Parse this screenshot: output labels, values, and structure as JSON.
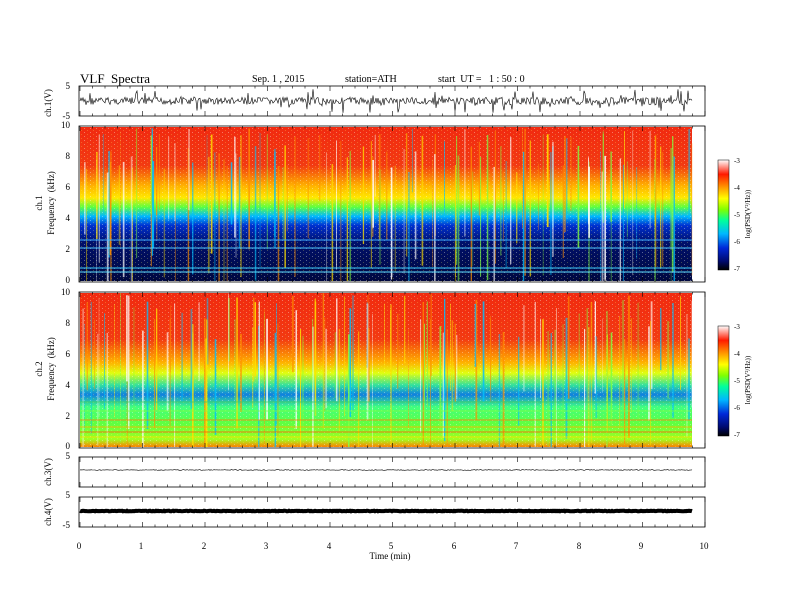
{
  "header": {
    "title": "VLF  Spectra",
    "date": "Sep. 1 , 2015",
    "station": "station=ATH",
    "start": "start  UT =   1 : 50 : 0"
  },
  "panels": {
    "ch1_wave": {
      "ylabel": "ch.1(V)",
      "ticks": [
        "5",
        "-5"
      ]
    },
    "ch1_spec": {
      "ylabel_top": "ch.1",
      "ylabel": "Frequency  (kHz)",
      "ticks": [
        "10",
        "8",
        "6",
        "4",
        "2",
        "0"
      ]
    },
    "ch2_spec": {
      "ylabel_top": "ch.2",
      "ylabel": "Frequency  (kHz)",
      "ticks": [
        "10",
        "8",
        "6",
        "4",
        "2",
        "0"
      ]
    },
    "ch3_wave": {
      "ylabel": "ch.3(V)",
      "ticks": [
        "5"
      ]
    },
    "ch4_wave": {
      "ylabel": "ch.4(V)",
      "ticks": [
        "5",
        "-5"
      ]
    }
  },
  "colorbar": {
    "label": "log(PSD(V²/Hz))",
    "ticks": [
      "-3",
      "-4",
      "-5",
      "-6",
      "-7"
    ]
  },
  "chart_data": [
    {
      "type": "line",
      "panel": "ch.1 waveform",
      "ylabel": "ch.1(V)",
      "ylim": [
        -5,
        5
      ],
      "xlim": [
        0,
        10
      ],
      "x_unit": "min",
      "description_values": {
        "baseline": 0,
        "noise_amplitude_V": 1.5,
        "data_end_min": 9.8
      }
    },
    {
      "type": "heatmap",
      "panel": "ch.1 spectrogram",
      "ylabel": "Frequency  (kHz)",
      "ylim": [
        0,
        10
      ],
      "xlim": [
        0,
        10
      ],
      "clim": [
        -7,
        -3
      ],
      "frequency_kHz": [
        10,
        9,
        8,
        7,
        6,
        5,
        4,
        3,
        2,
        1,
        0
      ],
      "mean_logPSD": [
        -3.6,
        -3.7,
        -3.8,
        -4.0,
        -4.3,
        -5.2,
        -6.3,
        -6.6,
        -6.6,
        -6.6,
        -6.8
      ]
    },
    {
      "type": "heatmap",
      "panel": "ch.2 spectrogram",
      "ylabel": "Frequency  (kHz)",
      "ylim": [
        0,
        10
      ],
      "xlim": [
        0,
        10
      ],
      "clim": [
        -7,
        -3
      ],
      "frequency_kHz": [
        10,
        9,
        8,
        7,
        6,
        5,
        4,
        3,
        2,
        1,
        0
      ],
      "mean_logPSD": [
        -3.6,
        -3.7,
        -3.8,
        -4.0,
        -4.3,
        -4.9,
        -5.4,
        -5.6,
        -5.3,
        -5.1,
        -4.2
      ]
    },
    {
      "type": "line",
      "panel": "ch.3 waveform",
      "ylabel": "ch.3(V)",
      "ylim": [
        -5,
        5
      ],
      "xlim": [
        0,
        10
      ],
      "description_values": {
        "baseline": 0,
        "noise_amplitude_V": 0.1
      }
    },
    {
      "type": "line",
      "panel": "ch.4 waveform",
      "ylabel": "ch.4(V)",
      "ylim": [
        -5,
        5
      ],
      "xlim": [
        0,
        10
      ],
      "description_values": {
        "baseline": 0,
        "noise_amplitude_V": 0.3
      }
    }
  ],
  "xaxis": {
    "label": "Time  (min)",
    "ticks": [
      "0",
      "1",
      "2",
      "3",
      "4",
      "5",
      "6",
      "7",
      "8",
      "9",
      "10"
    ]
  }
}
